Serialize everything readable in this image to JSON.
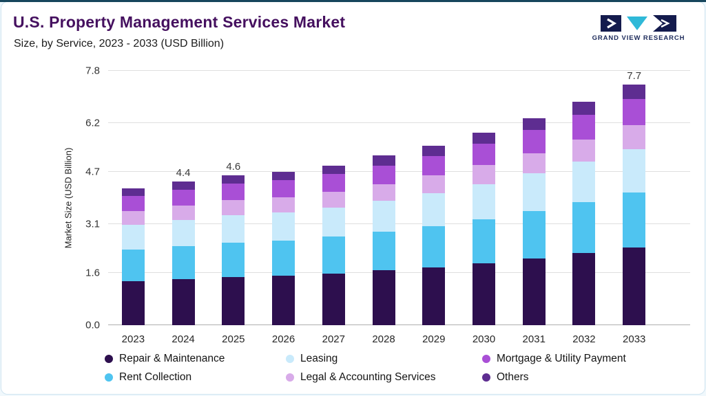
{
  "header": {
    "title": "U.S. Property Management Services Market",
    "subtitle": "Size, by Service, 2023 - 2033 (USD Billion)",
    "logo_text": "GRAND VIEW RESEARCH"
  },
  "chart_data": {
    "type": "bar",
    "stacked": true,
    "title": "U.S. Property Management Services Market Size, by Service, 2023 - 2033 (USD Billion)",
    "xlabel": "",
    "ylabel": "Market Size (USD Billion)",
    "ylim": [
      0,
      7.8
    ],
    "ytick_labels": [
      "0.0",
      "1.6",
      "3.1",
      "4.7",
      "6.2",
      "7.8"
    ],
    "grid": "horizontal",
    "legend_position": "bottom",
    "categories": [
      "2023",
      "2024",
      "2025",
      "2026",
      "2027",
      "2028",
      "2029",
      "2030",
      "2031",
      "2032",
      "2033"
    ],
    "totals": [
      4.2,
      4.4,
      4.6,
      4.7,
      4.9,
      5.2,
      5.5,
      5.9,
      6.35,
      6.85,
      7.7
    ],
    "bar_labels": [
      "",
      "4.4",
      "4.6",
      "",
      "",
      "",
      "",
      "",
      "",
      "",
      "7.7"
    ],
    "series": [
      {
        "name": "Repair & Maintenance",
        "color": "#2d0f4e",
        "values": [
          1.35,
          1.42,
          1.48,
          1.52,
          1.58,
          1.68,
          1.78,
          1.9,
          2.05,
          2.21,
          2.48
        ]
      },
      {
        "name": "Rent Collection",
        "color": "#4fc4f0",
        "values": [
          0.97,
          1.01,
          1.06,
          1.08,
          1.13,
          1.19,
          1.26,
          1.35,
          1.45,
          1.57,
          1.76
        ]
      },
      {
        "name": "Leasing",
        "color": "#c9eafb",
        "values": [
          0.76,
          0.8,
          0.84,
          0.86,
          0.89,
          0.94,
          1.0,
          1.07,
          1.15,
          1.24,
          1.4
        ]
      },
      {
        "name": "Legal & Accounting Services",
        "color": "#d8abe9",
        "values": [
          0.42,
          0.44,
          0.46,
          0.47,
          0.49,
          0.52,
          0.55,
          0.59,
          0.63,
          0.68,
          0.76
        ]
      },
      {
        "name": "Mortgage & Utility Payment",
        "color": "#a94fd6",
        "values": [
          0.46,
          0.48,
          0.5,
          0.51,
          0.54,
          0.57,
          0.6,
          0.65,
          0.7,
          0.75,
          0.85
        ]
      },
      {
        "name": "Others",
        "color": "#5e2d91",
        "values": [
          0.24,
          0.25,
          0.26,
          0.26,
          0.27,
          0.3,
          0.31,
          0.34,
          0.37,
          0.4,
          0.45
        ]
      }
    ],
    "legend": [
      {
        "label": "Repair & Maintenance",
        "color": "#2d0f4e"
      },
      {
        "label": "Leasing",
        "color": "#c9eafb"
      },
      {
        "label": "Mortgage & Utility Payment",
        "color": "#a94fd6"
      },
      {
        "label": "Rent Collection",
        "color": "#4fc4f0"
      },
      {
        "label": "Legal & Accounting Services",
        "color": "#d8abe9"
      },
      {
        "label": "Others",
        "color": "#5e2d91"
      }
    ]
  }
}
